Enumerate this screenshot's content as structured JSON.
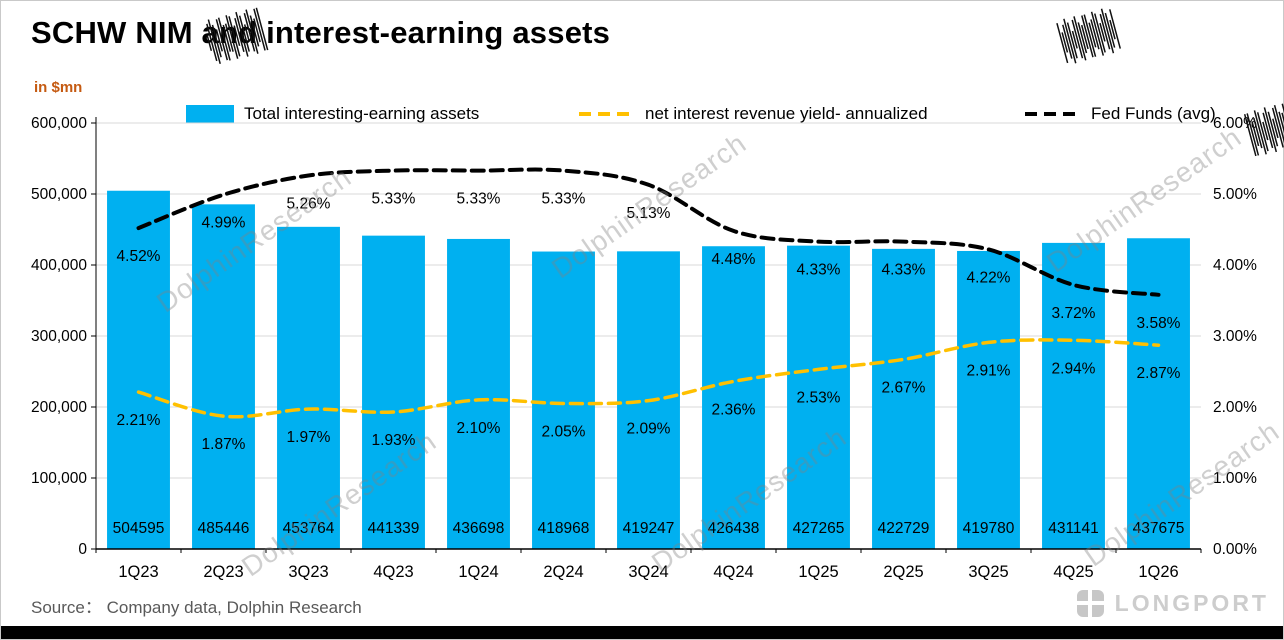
{
  "page": {
    "title": "SCHW NIM and interest-earning assets",
    "unit_label": "in $mn",
    "source": "Source：  Company data, Dolphin Research",
    "watermark_text": "DolphinResearch",
    "brand": "LONGPORT"
  },
  "colors": {
    "bar": "#00B0F0",
    "yield_line": "#FFC000",
    "fed_line": "#000000",
    "grid": "#D9D9D9",
    "axis": "#000000",
    "unit_label": "#C55A11",
    "source_text": "#595959",
    "label_text": "#000000"
  },
  "legend": [
    {
      "label": "Total interesting-earning assets",
      "swatch": "bar",
      "color": "#00B0F0"
    },
    {
      "label": "net interest revenue yield- annualized",
      "swatch": "dashed-line",
      "color": "#FFC000"
    },
    {
      "label": "Fed Funds (avg)",
      "swatch": "dashed-line",
      "color": "#000000"
    }
  ],
  "chart_data": {
    "type": "combo-bar-line",
    "categories": [
      "1Q23",
      "2Q23",
      "3Q23",
      "4Q23",
      "1Q24",
      "2Q24",
      "3Q24",
      "4Q24",
      "1Q25",
      "2Q25",
      "3Q25",
      "4Q25",
      "1Q26"
    ],
    "series": [
      {
        "name": "Total interesting-earning assets",
        "type": "bar",
        "axis": "left",
        "color": "#00B0F0",
        "values": [
          504595,
          485446,
          453764,
          441339,
          436698,
          418968,
          419247,
          426438,
          427265,
          422729,
          419780,
          431141,
          437675
        ]
      },
      {
        "name": "net interest revenue yield- annualized",
        "type": "line",
        "style": "dashed",
        "smooth": true,
        "axis": "right",
        "color": "#FFC000",
        "values": [
          2.21,
          1.87,
          1.97,
          1.93,
          2.1,
          2.05,
          2.09,
          2.36,
          2.53,
          2.67,
          2.91,
          2.94,
          2.87
        ]
      },
      {
        "name": "Fed Funds (avg)",
        "type": "line",
        "style": "dashed",
        "smooth": true,
        "axis": "right",
        "color": "#000000",
        "values": [
          4.52,
          4.99,
          5.26,
          5.33,
          5.33,
          5.33,
          5.13,
          4.48,
          4.33,
          4.33,
          4.22,
          3.72,
          3.58
        ]
      }
    ],
    "left_axis": {
      "min": 0,
      "max": 600000,
      "step": 100000,
      "ticks": [
        "0",
        "100,000",
        "200,000",
        "300,000",
        "400,000",
        "500,000",
        "600,000"
      ]
    },
    "right_axis": {
      "min": 0,
      "max": 6,
      "step": 1,
      "ticks": [
        "0.00%",
        "1.00%",
        "2.00%",
        "3.00%",
        "4.00%",
        "5.00%",
        "6.00%"
      ]
    },
    "data_labels": {
      "bar_format": "integer",
      "line_format": "percent2"
    },
    "grid": true,
    "legend_position": "top"
  }
}
